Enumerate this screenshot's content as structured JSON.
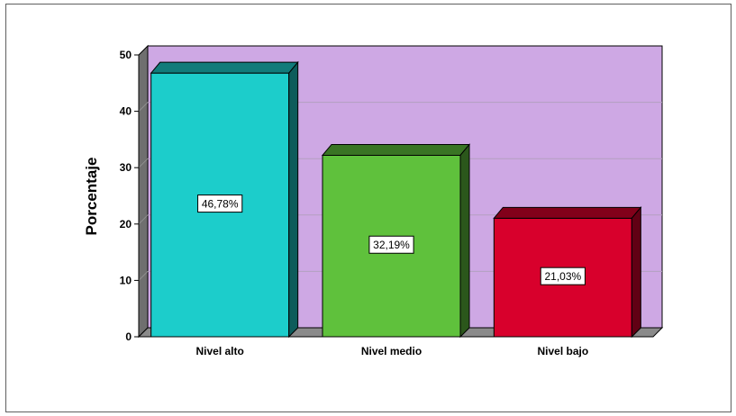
{
  "chart_data": {
    "type": "bar",
    "title": "",
    "xlabel": "",
    "ylabel": "Porcentaje",
    "ylim": [
      0,
      50
    ],
    "yticks": [
      0,
      10,
      20,
      30,
      40,
      50
    ],
    "grid": true,
    "categories": [
      "Nivel alto",
      "Nivel medio",
      "Nivel bajo"
    ],
    "values": [
      46.78,
      32.19,
      21.03
    ],
    "data_labels": [
      "46,78%",
      "32,19%",
      "21,03%"
    ],
    "colors": [
      "#1ccdcb",
      "#5fc13c",
      "#d8002c"
    ],
    "plot_background": "#cea8e4",
    "floor_color": "#8a8a8a"
  }
}
